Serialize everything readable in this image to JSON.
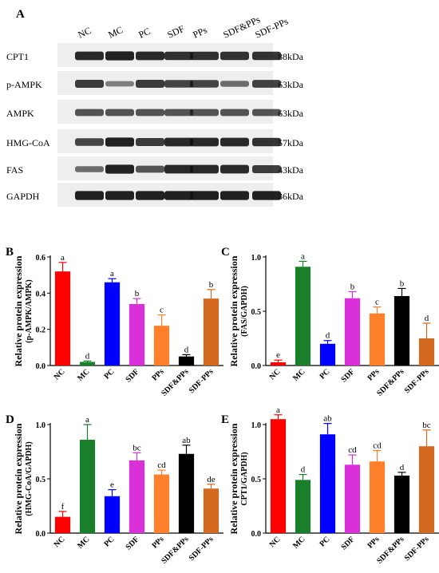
{
  "figure": {
    "panel_a": {
      "label": "A",
      "lanes": [
        "NC",
        "MC",
        "PC",
        "SDF",
        "PPs",
        "SDF&PPs",
        "SDF-PPs"
      ],
      "blots": [
        {
          "protein": "CPT1",
          "size": "88kDa",
          "intensity": [
            0.85,
            0.9,
            0.85,
            0.82,
            0.82,
            0.8,
            0.8
          ]
        },
        {
          "protein": "p-AMPK",
          "size": "63kDa",
          "intensity": [
            0.75,
            0.35,
            0.75,
            0.7,
            0.7,
            0.45,
            0.72
          ]
        },
        {
          "protein": "AMPK",
          "size": "63kDa",
          "intensity": [
            0.6,
            0.6,
            0.6,
            0.6,
            0.6,
            0.6,
            0.6
          ]
        },
        {
          "protein": "HMG-CoA",
          "size": "57kDa",
          "intensity": [
            0.7,
            0.9,
            0.75,
            0.85,
            0.85,
            0.85,
            0.8
          ]
        },
        {
          "protein": "FAS",
          "size": "43kDa",
          "intensity": [
            0.45,
            0.9,
            0.6,
            0.85,
            0.85,
            0.85,
            0.75
          ]
        },
        {
          "protein": "GAPDH",
          "size": "36kDa",
          "intensity": [
            0.9,
            0.9,
            0.9,
            0.9,
            0.9,
            0.9,
            0.9
          ]
        }
      ]
    }
  },
  "chart_data": [
    {
      "panel": "B",
      "type": "bar",
      "ylabel": "Relative protein expression",
      "ylabel2": "(p-AMPK/AMPK)",
      "categories": [
        "NC",
        "MC",
        "PC",
        "SDF",
        "PPs",
        "SDF&PPs",
        "SDF-PPs"
      ],
      "values": [
        0.52,
        0.02,
        0.46,
        0.34,
        0.22,
        0.05,
        0.37
      ],
      "errors": [
        0.05,
        0.005,
        0.02,
        0.03,
        0.06,
        0.01,
        0.05
      ],
      "letters": [
        "a",
        "d",
        "a",
        "b",
        "c",
        "d",
        "b"
      ],
      "colors": [
        "#ff0000",
        "#1a7f2a",
        "#0000ff",
        "#d930d9",
        "#ff7f2a",
        "#000000",
        "#d2691e"
      ],
      "ylim": [
        0,
        0.6
      ],
      "yticks": [
        "0.0",
        "0.2",
        "0.4",
        "0.6"
      ],
      "ytick_values": [
        0,
        0.2,
        0.4,
        0.6
      ]
    },
    {
      "panel": "C",
      "type": "bar",
      "ylabel": "Relative protein expression",
      "ylabel2": "(FAS/GAPDH)",
      "categories": [
        "NC",
        "MC",
        "PC",
        "SDF",
        "PPs",
        "SDF&PPs",
        "SDF-PPs"
      ],
      "values": [
        0.03,
        0.91,
        0.2,
        0.62,
        0.48,
        0.64,
        0.25
      ],
      "errors": [
        0.02,
        0.05,
        0.03,
        0.06,
        0.06,
        0.07,
        0.14
      ],
      "letters": [
        "e",
        "a",
        "d",
        "b",
        "c",
        "b",
        "d"
      ],
      "colors": [
        "#ff0000",
        "#1a7f2a",
        "#0000ff",
        "#d930d9",
        "#ff7f2a",
        "#000000",
        "#d2691e"
      ],
      "ylim": [
        0,
        1.0
      ],
      "yticks": [
        "0.0",
        "0.5",
        "1.0"
      ],
      "ytick_values": [
        0,
        0.5,
        1.0
      ]
    },
    {
      "panel": "D",
      "type": "bar",
      "ylabel": "Relative protein expression",
      "ylabel2": "(HMG-CoA/GAPDH)",
      "categories": [
        "NC",
        "MC",
        "PC",
        "SDF",
        "PPs",
        "SDF&PPs",
        "SDF-PPs"
      ],
      "values": [
        0.15,
        0.86,
        0.34,
        0.67,
        0.54,
        0.73,
        0.41
      ],
      "errors": [
        0.05,
        0.14,
        0.06,
        0.07,
        0.04,
        0.08,
        0.04
      ],
      "letters": [
        "f",
        "a",
        "e",
        "bc",
        "cd",
        "ab",
        "de"
      ],
      "colors": [
        "#ff0000",
        "#1a7f2a",
        "#0000ff",
        "#d930d9",
        "#ff7f2a",
        "#000000",
        "#d2691e"
      ],
      "ylim": [
        0,
        1.0
      ],
      "yticks": [
        "0.0",
        "0.5",
        "1.0"
      ],
      "ytick_values": [
        0,
        0.5,
        1.0
      ]
    },
    {
      "panel": "E",
      "type": "bar",
      "ylabel": "Relative protein expression",
      "ylabel2": "CPT1/GAPDH)",
      "categories": [
        "NC",
        "MC",
        "PC",
        "SDF",
        "PPs",
        "SDF&PPs",
        "SDF-PPs"
      ],
      "values": [
        1.05,
        0.49,
        0.91,
        0.63,
        0.66,
        0.53,
        0.8
      ],
      "errors": [
        0.04,
        0.05,
        0.1,
        0.09,
        0.1,
        0.03,
        0.15
      ],
      "letters": [
        "a",
        "d",
        "ab",
        "cd",
        "cd",
        "d",
        "bc"
      ],
      "colors": [
        "#ff0000",
        "#1a7f2a",
        "#0000ff",
        "#d930d9",
        "#ff7f2a",
        "#000000",
        "#d2691e"
      ],
      "ylim": [
        0,
        1.0
      ],
      "yticks": [
        "0.0",
        "0.5",
        "1.0"
      ],
      "ytick_values": [
        0,
        0.5,
        1.0
      ]
    }
  ]
}
